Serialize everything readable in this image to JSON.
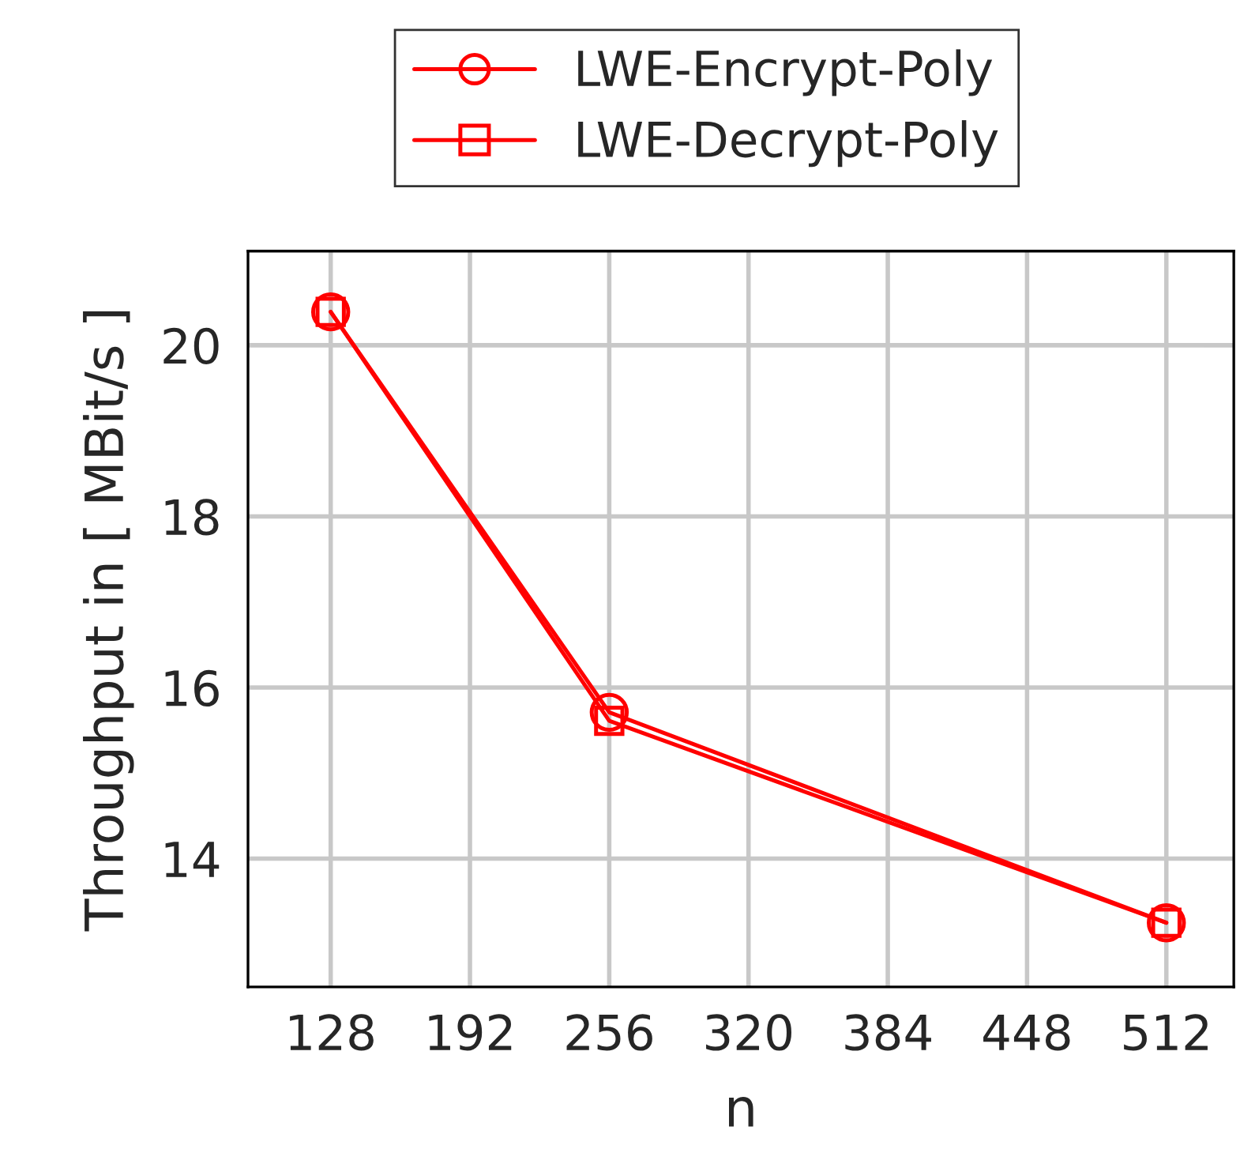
{
  "chart_data": {
    "type": "line",
    "xlabel": "n",
    "ylabel": "Throughput in [ MBit/s ]",
    "x": [
      128,
      256,
      512
    ],
    "series": [
      {
        "name": "LWE-Encrypt-Poly",
        "color": "#ff0000",
        "marker": "circle",
        "values": [
          20.39,
          15.71,
          13.25
        ]
      },
      {
        "name": "LWE-Decrypt-Poly",
        "color": "#ff0000",
        "marker": "square",
        "values": [
          20.39,
          15.61,
          13.25
        ]
      }
    ],
    "xlim": [
      90,
      543
    ],
    "ylim": [
      12.5,
      21.1
    ],
    "xticks": [
      128,
      192,
      256,
      320,
      384,
      448,
      512
    ],
    "yticks": [
      14,
      16,
      18,
      20
    ],
    "grid": true,
    "legend": "top",
    "line_style": "solid"
  }
}
